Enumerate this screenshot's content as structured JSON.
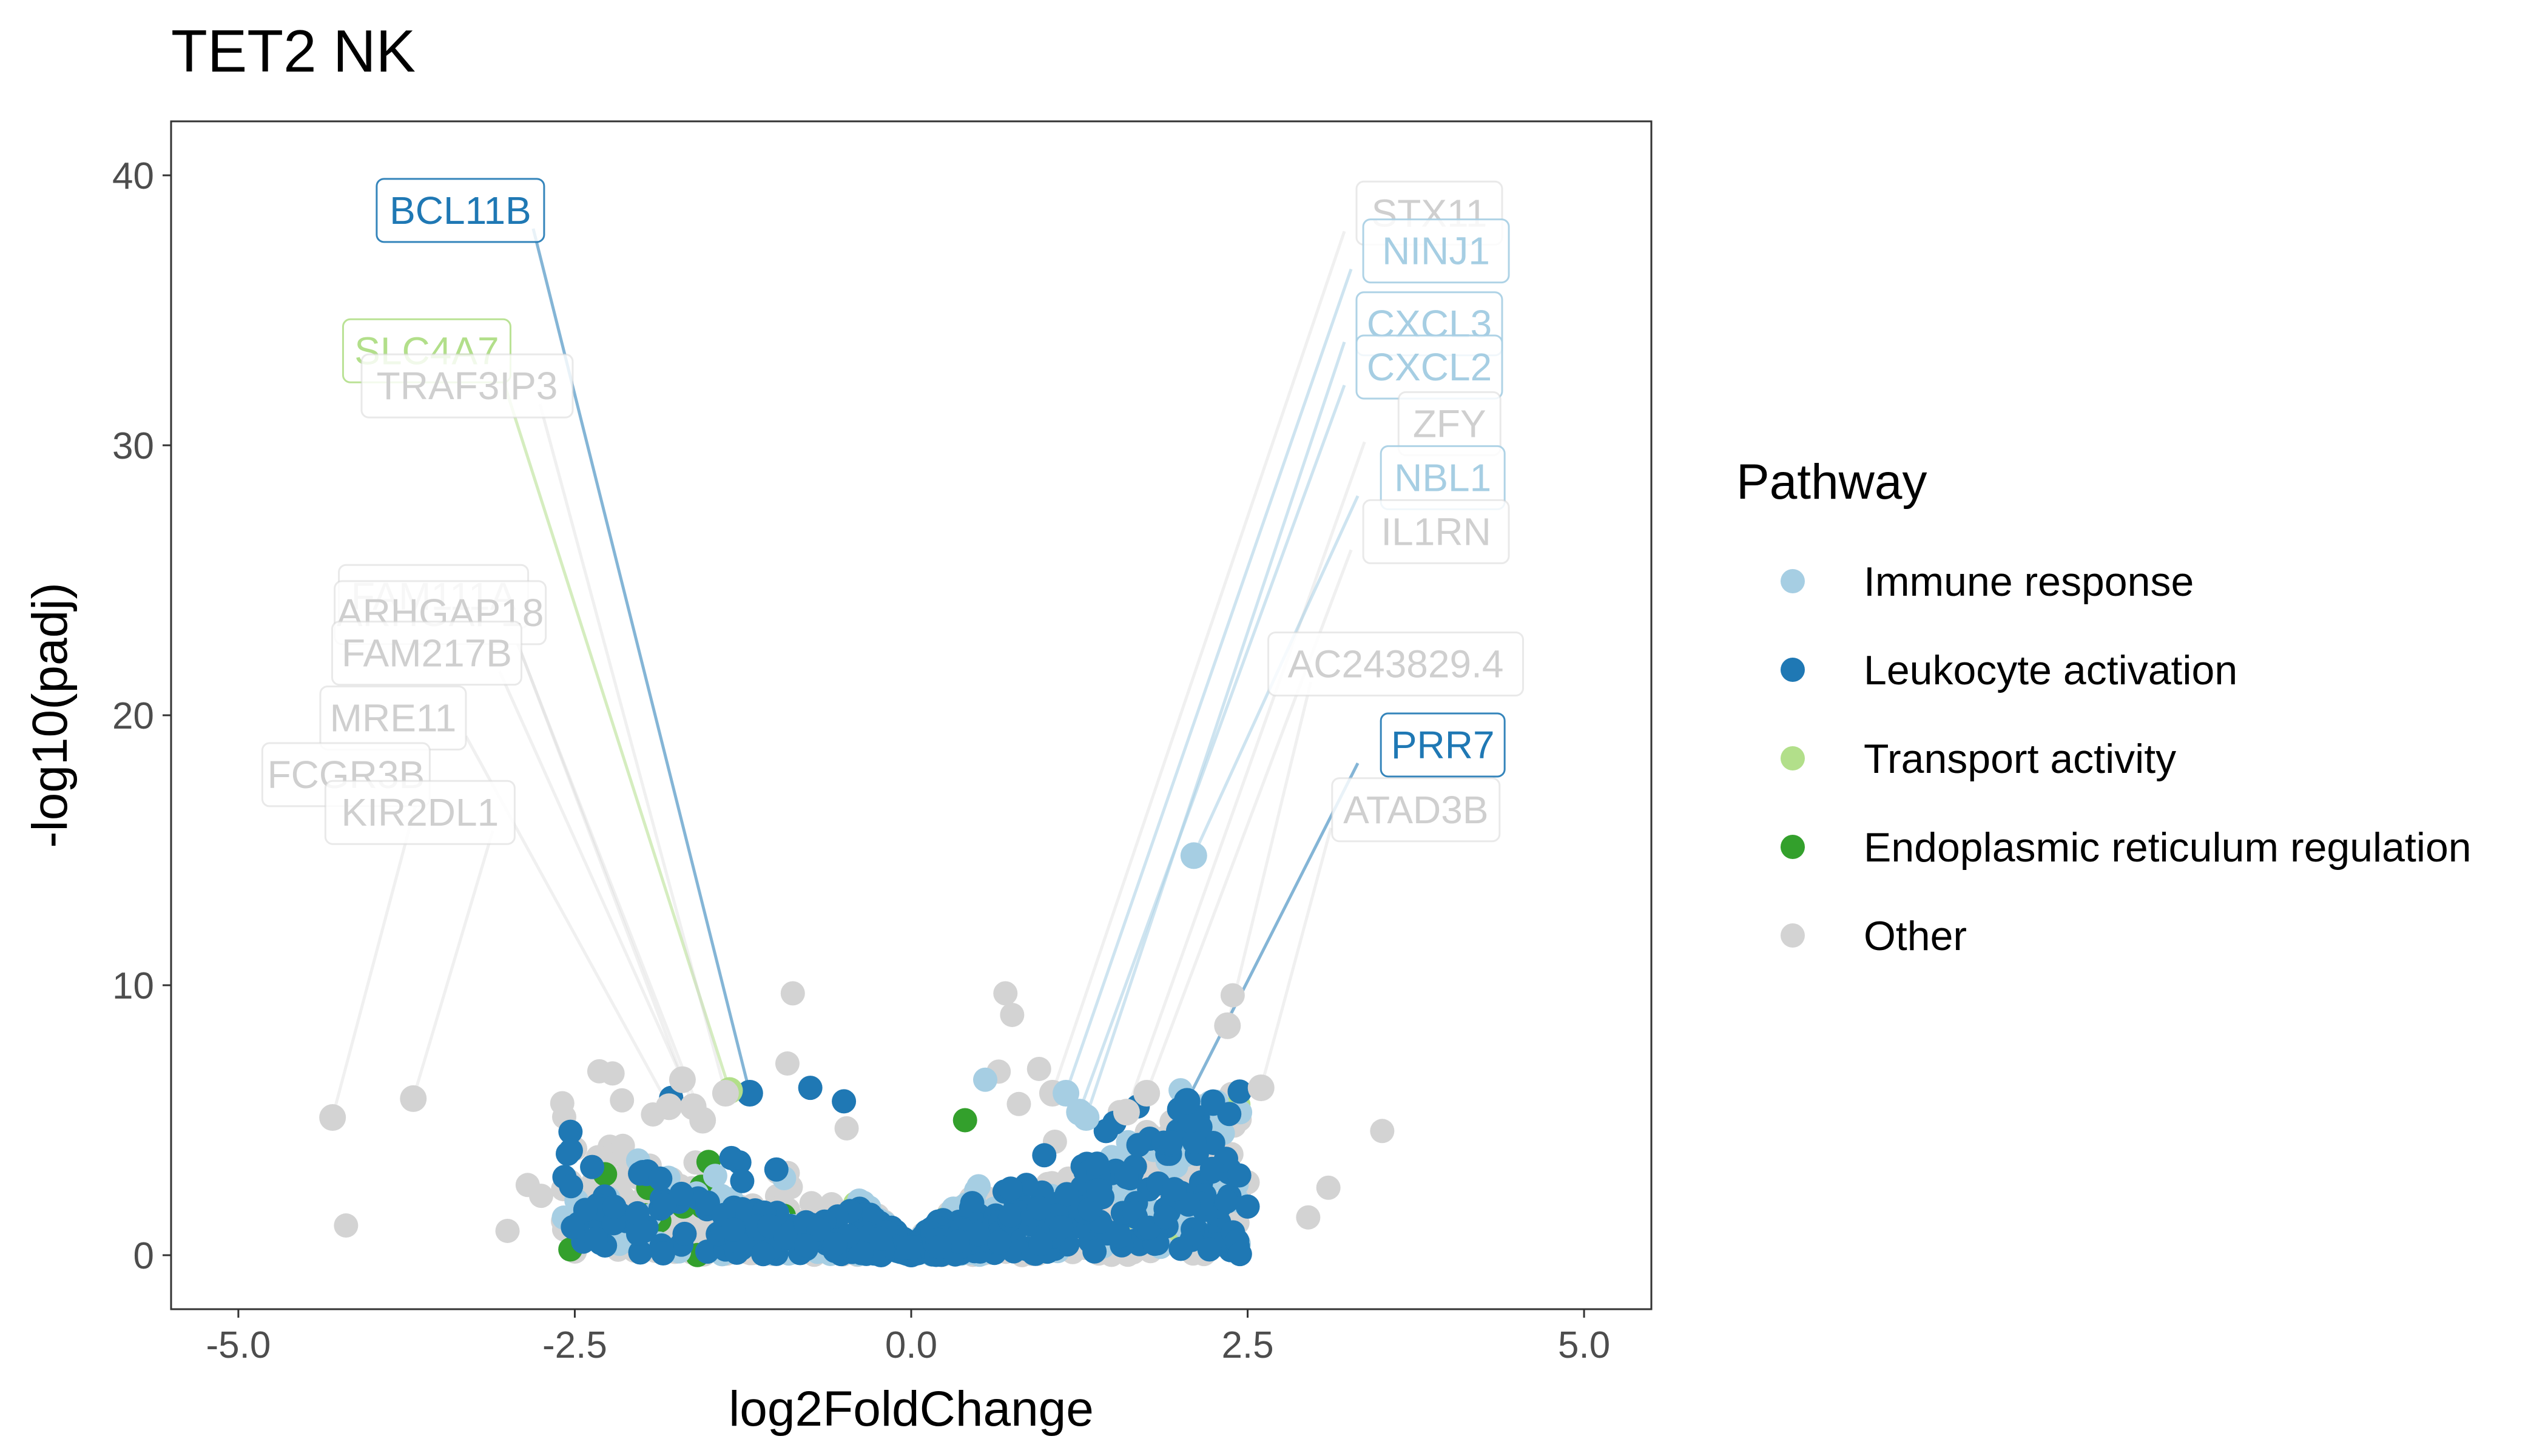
{
  "colors": {
    "immune_response": "#a6cee3",
    "leukocyte_activation": "#1f78b4",
    "transport_activity": "#b2df8a",
    "endoplasmic_reticulum_regulation": "#33a02c",
    "other": "#d3d3d3"
  },
  "chart_data": {
    "type": "scatter",
    "title": "TET2 NK",
    "xlabel": "log2FoldChange",
    "ylabel": "-log10(padj)",
    "xlim": [
      -5.5,
      5.5
    ],
    "ylim": [
      -2,
      42
    ],
    "x_ticks": [
      -5.0,
      -2.5,
      0.0,
      2.5,
      5.0
    ],
    "x_tick_labels": [
      "-5.0",
      "-2.5",
      "0.0",
      "2.5",
      "5.0"
    ],
    "y_ticks": [
      0,
      10,
      20,
      30,
      40
    ],
    "y_tick_labels": [
      "0",
      "10",
      "20",
      "30",
      "40"
    ],
    "grid": false,
    "legend": {
      "title": "Pathway",
      "position": "right",
      "entries": [
        {
          "label": "Immune response",
          "key": "immune_response"
        },
        {
          "label": "Leukocyte activation",
          "key": "leukocyte_activation"
        },
        {
          "label": "Transport activity",
          "key": "transport_activity"
        },
        {
          "label": "Endoplasmic reticulum regulation",
          "key": "endoplasmic_reticulum_regulation"
        },
        {
          "label": "Other",
          "key": "other"
        }
      ]
    },
    "labeled_points": [
      {
        "gene": "BCL11B",
        "x": -1.2,
        "y": 6.0,
        "pathway": "leukocyte_activation",
        "label_x": -3.35,
        "label_y": 38.7
      },
      {
        "gene": "SLC4A7",
        "x": -1.35,
        "y": 6.1,
        "pathway": "transport_activity",
        "label_x": -3.6,
        "label_y": 33.5
      },
      {
        "gene": "TRAF3IP3",
        "x": -1.38,
        "y": 6.0,
        "pathway": "other",
        "label_x": -3.3,
        "label_y": 32.2
      },
      {
        "gene": "FAM111A",
        "x": -1.55,
        "y": 5.0,
        "pathway": "other",
        "label_x": -3.55,
        "label_y": 24.4
      },
      {
        "gene": "ARHGAP18",
        "x": -1.62,
        "y": 5.5,
        "pathway": "other",
        "label_x": -3.5,
        "label_y": 23.8
      },
      {
        "gene": "FAM217B",
        "x": -1.7,
        "y": 6.5,
        "pathway": "other",
        "label_x": -3.6,
        "label_y": 22.3
      },
      {
        "gene": "MRE11",
        "x": -1.8,
        "y": 5.5,
        "pathway": "other",
        "label_x": -3.85,
        "label_y": 19.9
      },
      {
        "gene": "FCGR3B",
        "x": -4.3,
        "y": 5.1,
        "pathway": "other",
        "label_x": -4.2,
        "label_y": 17.8
      },
      {
        "gene": "KIR2DL1",
        "x": -3.7,
        "y": 5.8,
        "pathway": "other",
        "label_x": -3.65,
        "label_y": 16.4
      },
      {
        "gene": "STX11",
        "x": 1.05,
        "y": 6.0,
        "pathway": "other",
        "label_x": 3.85,
        "label_y": 38.6
      },
      {
        "gene": "NINJ1",
        "x": 1.15,
        "y": 6.0,
        "pathway": "immune_response",
        "label_x": 3.9,
        "label_y": 37.2
      },
      {
        "gene": "CXCL3",
        "x": 1.3,
        "y": 5.1,
        "pathway": "immune_response",
        "label_x": 3.85,
        "label_y": 34.5
      },
      {
        "gene": "CXCL2",
        "x": 1.25,
        "y": 5.3,
        "pathway": "immune_response",
        "label_x": 3.85,
        "label_y": 32.9
      },
      {
        "gene": "ZFY",
        "x": 1.6,
        "y": 5.3,
        "pathway": "other",
        "label_x": 4.0,
        "label_y": 30.8
      },
      {
        "gene": "NBL1",
        "x": 2.1,
        "y": 14.8,
        "pathway": "immune_response",
        "label_x": 3.95,
        "label_y": 28.8
      },
      {
        "gene": "IL1RN",
        "x": 1.75,
        "y": 6.0,
        "pathway": "other",
        "label_x": 3.9,
        "label_y": 26.8
      },
      {
        "gene": "AC243829.4",
        "x": 2.35,
        "y": 8.5,
        "pathway": "other",
        "label_x": 3.6,
        "label_y": 21.9
      },
      {
        "gene": "PRR7",
        "x": 2.05,
        "y": 5.7,
        "pathway": "leukocyte_activation",
        "label_x": 3.95,
        "label_y": 18.9
      },
      {
        "gene": "ATAD3B",
        "x": 2.6,
        "y": 6.2,
        "pathway": "other",
        "label_x": 3.75,
        "label_y": 16.5
      }
    ]
  }
}
